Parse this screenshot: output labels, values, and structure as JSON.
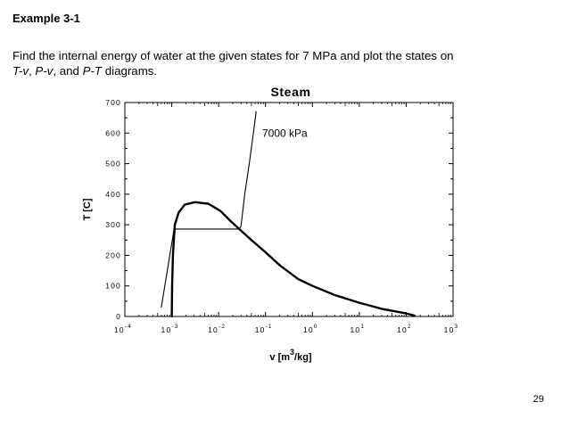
{
  "slide": {
    "heading": "Example 3-1",
    "problem_text_1": "Find the internal energy of water at the given states for 7 MPa and plot the states on",
    "problem_text_2_seg1": "T-v",
    "problem_text_2_sep1": ", ",
    "problem_text_2_seg2": "P-v",
    "problem_text_2_sep2": ", and ",
    "problem_text_2_seg3": "P-T",
    "problem_text_2_end": " diagrams.",
    "page_number": "29"
  },
  "chart_data": {
    "type": "line",
    "title": "Steam",
    "xlabel": "v [m³/kg]",
    "ylabel": "T [C]",
    "x_scale": "log",
    "xlim": [
      0.0001,
      1000
    ],
    "ylim": [
      0,
      700
    ],
    "x_ticks": [
      {
        "base": "10",
        "exp": "-4"
      },
      {
        "base": "10",
        "exp": "-3"
      },
      {
        "base": "10",
        "exp": "-2"
      },
      {
        "base": "10",
        "exp": "-1"
      },
      {
        "base": "10",
        "exp": "0"
      },
      {
        "base": "10",
        "exp": "1"
      },
      {
        "base": "10",
        "exp": "2"
      },
      {
        "base": "10",
        "exp": "3"
      }
    ],
    "y_ticks": [
      "0",
      "100",
      "200",
      "300",
      "400",
      "500",
      "600",
      "700"
    ],
    "y_tick_values": [
      0,
      100,
      200,
      300,
      400,
      500,
      600,
      700
    ],
    "grid": false,
    "annotations": [
      {
        "text": "7000 kPa",
        "x": 0.085,
        "y": 600
      }
    ],
    "series": [
      {
        "style": "thick",
        "points": [
          [
            0.001,
            0
          ],
          [
            0.00102,
            100
          ],
          [
            0.00106,
            200
          ],
          [
            0.00116,
            300
          ],
          [
            0.0014,
            340
          ],
          [
            0.0019,
            366
          ],
          [
            0.0031,
            374
          ],
          [
            0.006,
            369
          ],
          [
            0.011,
            345
          ],
          [
            0.018,
            312
          ],
          [
            0.0274,
            286
          ],
          [
            0.05,
            250
          ],
          [
            0.1,
            210
          ],
          [
            0.2,
            168
          ],
          [
            0.5,
            122
          ],
          [
            1.0,
            100
          ],
          [
            3.0,
            70
          ],
          [
            10.0,
            45
          ],
          [
            30.0,
            25
          ],
          [
            100.0,
            10
          ],
          [
            150.0,
            3
          ]
        ]
      },
      {
        "style": "thin",
        "points": [
          [
            0.0006,
            30
          ],
          [
            0.00112,
            286
          ],
          [
            0.0274,
            286
          ],
          [
            0.03,
            295
          ],
          [
            0.033,
            350
          ],
          [
            0.036,
            400
          ],
          [
            0.045,
            500
          ],
          [
            0.055,
            600
          ],
          [
            0.063,
            670
          ]
        ]
      }
    ]
  }
}
